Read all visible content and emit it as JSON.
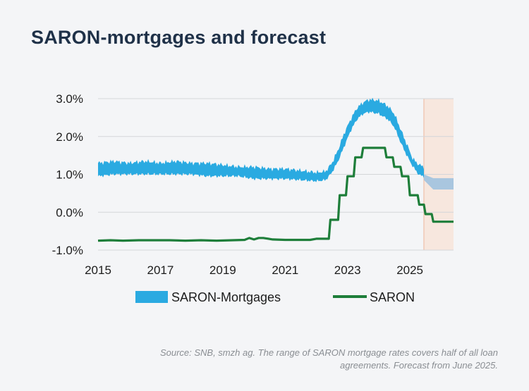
{
  "title": "SARON-mortgages and forecast",
  "source": "Source: SNB, smzh ag. The range of SARON mortgage rates covers half of all loan agreements. Forecast from June 2025.",
  "colors": {
    "mortgage_band": "#2aaae1",
    "forecast_band": "#a9c6df",
    "saron_line": "#1e7e3a",
    "forecast_shade": "#f7e7de",
    "forecast_edge": "#f0c9b6"
  },
  "chart_data": {
    "type": "area",
    "xlim": [
      2015,
      2026.4
    ],
    "ylim": [
      -1.0,
      3.0
    ],
    "yticks": [
      -1.0,
      0.0,
      1.0,
      2.0,
      3.0
    ],
    "ytick_labels": [
      "-1.0%",
      "0.0%",
      "1.0%",
      "2.0%",
      "3.0%"
    ],
    "xticks": [
      2015,
      2017,
      2019,
      2021,
      2023,
      2025
    ],
    "xtick_labels": [
      "2015",
      "2017",
      "2019",
      "2021",
      "2023",
      "2025"
    ],
    "forecast_start": 2025.45,
    "legend": [
      {
        "name": "SARON-Mortgages",
        "symbol": "band"
      },
      {
        "name": "SARON",
        "symbol": "line"
      }
    ],
    "mortgage_band": {
      "name": "SARON-Mortgages",
      "x": [
        2015.0,
        2015.5,
        2016.0,
        2016.5,
        2017.0,
        2017.5,
        2018.0,
        2018.5,
        2019.0,
        2019.5,
        2020.0,
        2020.5,
        2021.0,
        2021.5,
        2022.0,
        2022.3,
        2022.5,
        2022.7,
        2022.9,
        2023.1,
        2023.3,
        2023.5,
        2023.7,
        2024.0,
        2024.3,
        2024.5,
        2024.7,
        2024.9,
        2025.1,
        2025.3,
        2025.45
      ],
      "low": [
        0.95,
        1.0,
        1.0,
        1.0,
        1.0,
        1.0,
        1.0,
        0.95,
        0.95,
        0.95,
        0.88,
        0.88,
        0.88,
        0.85,
        0.82,
        0.85,
        1.05,
        1.35,
        1.75,
        2.15,
        2.45,
        2.6,
        2.65,
        2.6,
        2.45,
        2.25,
        1.85,
        1.5,
        1.2,
        0.98,
        0.95
      ],
      "high": [
        1.3,
        1.35,
        1.3,
        1.35,
        1.3,
        1.35,
        1.3,
        1.3,
        1.25,
        1.2,
        1.2,
        1.15,
        1.15,
        1.1,
        1.05,
        1.08,
        1.3,
        1.65,
        2.1,
        2.45,
        2.75,
        2.9,
        2.98,
        2.95,
        2.8,
        2.6,
        2.2,
        1.8,
        1.4,
        1.25,
        1.2
      ]
    },
    "forecast_band": {
      "x": [
        2025.45,
        2025.75,
        2026.4
      ],
      "low": [
        0.85,
        0.6,
        0.6
      ],
      "high": [
        1.0,
        0.9,
        0.9
      ]
    },
    "saron": {
      "name": "SARON",
      "x": [
        2015.0,
        2015.4,
        2015.8,
        2016.3,
        2016.8,
        2017.3,
        2017.8,
        2018.3,
        2018.8,
        2019.3,
        2019.7,
        2019.85,
        2020.0,
        2020.15,
        2020.3,
        2020.6,
        2021.0,
        2021.5,
        2021.8,
        2022.0,
        2022.4,
        2022.45,
        2022.7,
        2022.75,
        2022.95,
        2023.0,
        2023.2,
        2023.25,
        2023.45,
        2023.5,
        2023.7,
        2023.75,
        2024.2,
        2024.25,
        2024.45,
        2024.5,
        2024.7,
        2024.75,
        2024.95,
        2025.0,
        2025.25,
        2025.3,
        2025.45,
        2025.5,
        2025.7,
        2025.75,
        2026.4
      ],
      "y": [
        -0.75,
        -0.74,
        -0.75,
        -0.74,
        -0.74,
        -0.74,
        -0.75,
        -0.74,
        -0.75,
        -0.74,
        -0.73,
        -0.68,
        -0.72,
        -0.68,
        -0.68,
        -0.72,
        -0.73,
        -0.73,
        -0.73,
        -0.7,
        -0.7,
        -0.2,
        -0.2,
        0.45,
        0.45,
        0.95,
        0.95,
        1.45,
        1.45,
        1.7,
        1.7,
        1.7,
        1.7,
        1.45,
        1.45,
        1.2,
        1.2,
        0.95,
        0.95,
        0.45,
        0.45,
        0.2,
        0.2,
        -0.05,
        -0.05,
        -0.25,
        -0.25
      ]
    }
  }
}
